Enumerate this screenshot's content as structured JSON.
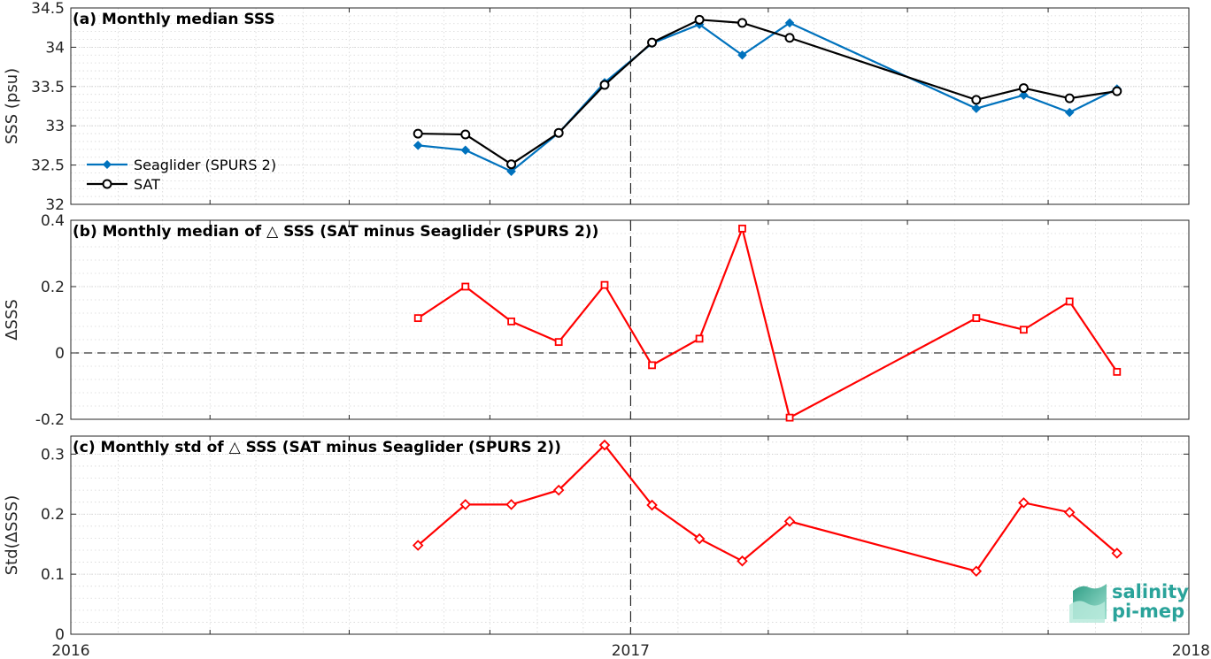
{
  "chart_data": [
    {
      "type": "line",
      "title": "(a) Monthly median SSS",
      "ylabel": "SSS (psu)",
      "ylim": [
        32,
        34.5
      ],
      "yticks": [
        32,
        32.5,
        33,
        33.5,
        34,
        34.5
      ],
      "ytick_labels": [
        "32",
        "32.5",
        "33",
        "33.5",
        "34",
        "34.5"
      ],
      "grid": true,
      "legend_position": "left",
      "series": [
        {
          "name": "Seaglider (SPURS 2)",
          "color": "#0072bd",
          "marker": "diamond",
          "x": [
            "2016-08-15",
            "2016-09-15",
            "2016-10-15",
            "2016-11-15",
            "2016-12-15",
            "2017-01-15",
            "2017-02-15",
            "2017-03-15",
            "2017-04-15",
            "2017-08-15",
            "2017-09-15",
            "2017-10-15",
            "2017-11-15"
          ],
          "values": [
            32.75,
            32.69,
            32.42,
            32.91,
            33.55,
            34.05,
            34.29,
            33.9,
            34.31,
            33.22,
            33.39,
            33.17,
            33.47
          ]
        },
        {
          "name": "SAT",
          "color": "#000000",
          "marker": "circle",
          "x": [
            "2016-08-15",
            "2016-09-15",
            "2016-10-15",
            "2016-11-15",
            "2016-12-15",
            "2017-01-15",
            "2017-02-15",
            "2017-03-15",
            "2017-04-15",
            "2017-08-15",
            "2017-09-15",
            "2017-10-15",
            "2017-11-15"
          ],
          "values": [
            32.9,
            32.89,
            32.51,
            32.91,
            33.52,
            34.06,
            34.35,
            34.31,
            34.12,
            33.33,
            33.48,
            33.35,
            33.44
          ]
        }
      ]
    },
    {
      "type": "line",
      "title": "(b) Monthly median of △ SSS (SAT minus Seaglider (SPURS 2))",
      "ylabel": "ΔSSS",
      "ylim": [
        -0.2,
        0.4
      ],
      "yticks": [
        -0.2,
        0,
        0.2,
        0.4
      ],
      "ytick_labels": [
        "-0.2",
        "0",
        "0.2",
        "0.4"
      ],
      "grid": true,
      "reference_line": 0,
      "series": [
        {
          "color": "#ff0000",
          "marker": "square",
          "x": [
            "2016-08-15",
            "2016-09-15",
            "2016-10-15",
            "2016-11-15",
            "2016-12-15",
            "2017-01-15",
            "2017-02-15",
            "2017-03-15",
            "2017-04-15",
            "2017-08-15",
            "2017-09-15",
            "2017-10-15",
            "2017-11-15"
          ],
          "values": [
            0.105,
            0.2,
            0.095,
            0.033,
            0.205,
            -0.037,
            0.043,
            0.375,
            -0.195,
            0.105,
            0.07,
            0.155,
            -0.057
          ]
        }
      ]
    },
    {
      "type": "line",
      "title": "(c) Monthly std of △ SSS (SAT minus Seaglider (SPURS 2))",
      "ylabel": "Std(ΔSSS)",
      "ylim": [
        0,
        0.33
      ],
      "yticks": [
        0,
        0.1,
        0.2,
        0.3
      ],
      "ytick_labels": [
        "0",
        "0.1",
        "0.2",
        "0.3"
      ],
      "grid": true,
      "series": [
        {
          "color": "#ff0000",
          "marker": "diamond",
          "x": [
            "2016-08-15",
            "2016-09-15",
            "2016-10-15",
            "2016-11-15",
            "2016-12-15",
            "2017-01-15",
            "2017-02-15",
            "2017-03-15",
            "2017-04-15",
            "2017-08-15",
            "2017-09-15",
            "2017-10-15",
            "2017-11-15"
          ],
          "values": [
            0.148,
            0.216,
            0.216,
            0.24,
            0.315,
            0.215,
            0.159,
            0.122,
            0.188,
            0.105,
            0.219,
            0.203,
            0.135
          ]
        }
      ]
    }
  ],
  "xaxis": {
    "range": [
      "2016-01-01",
      "2018-01-01"
    ],
    "tick_labels": [
      "2016",
      "2017",
      "2018"
    ],
    "tick_dates": [
      "2016-01-01",
      "2017-01-01",
      "2018-01-01"
    ],
    "divider_date": "2017-01-01"
  },
  "logo": {
    "line1": "salinity",
    "line2": "pi-mep"
  }
}
